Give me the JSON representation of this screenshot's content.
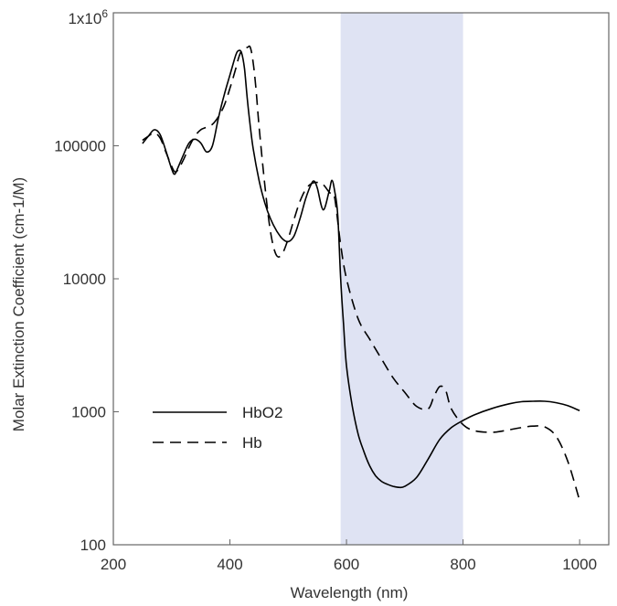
{
  "chart_data": {
    "type": "line",
    "xlabel": "Wavelength (nm)",
    "ylabel": "Molar Extinction Coefficient (cm-1/M)",
    "xlim": [
      200,
      1050
    ],
    "ylim": [
      100,
      1000000
    ],
    "y_scale": "log",
    "grid": false,
    "legend_position": "center-left",
    "x_ticks": [
      200,
      400,
      600,
      800,
      1000
    ],
    "x_tick_labels": [
      "200",
      "400",
      "600",
      "800",
      "1000"
    ],
    "y_ticks": [
      100,
      1000,
      10000,
      100000,
      1000000
    ],
    "y_tick_labels": [
      "100",
      "1000",
      "10000",
      "100000"
    ],
    "y_top_label": {
      "base": "1x10",
      "exponent": "6"
    },
    "shaded_region": {
      "x": [
        590,
        800
      ],
      "color": "#dfe3f3"
    },
    "series": [
      {
        "name": "HbO2",
        "style": "solid",
        "color": "#000000",
        "x": [
          250,
          260,
          270,
          280,
          290,
          300,
          305,
          310,
          320,
          330,
          340,
          350,
          360,
          370,
          380,
          390,
          400,
          410,
          415,
          420,
          425,
          430,
          435,
          440,
          450,
          460,
          470,
          480,
          490,
          500,
          510,
          520,
          530,
          540,
          545,
          550,
          560,
          570,
          575,
          580,
          585,
          590,
          595,
          600,
          610,
          620,
          630,
          640,
          650,
          660,
          670,
          680,
          690,
          700,
          720,
          740,
          760,
          780,
          800,
          820,
          850,
          880,
          900,
          920,
          940,
          960,
          980,
          1000
        ],
        "y": [
          104000,
          118000,
          132000,
          122000,
          92000,
          67000,
          61000,
          67000,
          85000,
          105000,
          112000,
          105000,
          90000,
          100000,
          160000,
          240000,
          340000,
          480000,
          520000,
          500000,
          380000,
          220000,
          140000,
          95000,
          55000,
          37000,
          28000,
          23000,
          20000,
          19000,
          21000,
          28000,
          40000,
          52000,
          54000,
          48000,
          33000,
          45000,
          55000,
          45000,
          30000,
          10000,
          4500,
          2200,
          1100,
          680,
          500,
          390,
          330,
          300,
          285,
          275,
          270,
          275,
          320,
          440,
          620,
          760,
          860,
          950,
          1060,
          1150,
          1190,
          1200,
          1200,
          1170,
          1110,
          1020
        ]
      },
      {
        "name": "Hb",
        "style": "dashed",
        "color": "#000000",
        "x": [
          250,
          260,
          270,
          280,
          290,
          300,
          305,
          310,
          320,
          330,
          340,
          350,
          360,
          370,
          380,
          390,
          400,
          410,
          415,
          420,
          425,
          430,
          435,
          440,
          445,
          450,
          460,
          470,
          480,
          490,
          500,
          510,
          520,
          530,
          540,
          550,
          560,
          570,
          575,
          580,
          590,
          600,
          620,
          640,
          660,
          680,
          700,
          720,
          740,
          750,
          760,
          770,
          780,
          800,
          820,
          850,
          870,
          900,
          920,
          940,
          960,
          980,
          1000
        ],
        "y": [
          110000,
          118000,
          125000,
          115000,
          90000,
          70000,
          64000,
          65000,
          78000,
          98000,
          118000,
          132000,
          138000,
          145000,
          165000,
          200000,
          270000,
          380000,
          460000,
          520000,
          540000,
          550000,
          550000,
          420000,
          260000,
          140000,
          50000,
          22000,
          15000,
          15500,
          20000,
          28000,
          38000,
          47000,
          52000,
          53000,
          51000,
          45000,
          43000,
          40000,
          18000,
          10000,
          5000,
          3500,
          2500,
          1800,
          1400,
          1100,
          1050,
          1300,
          1550,
          1450,
          1050,
          800,
          720,
          700,
          720,
          760,
          780,
          770,
          650,
          420,
          215
        ]
      }
    ]
  }
}
